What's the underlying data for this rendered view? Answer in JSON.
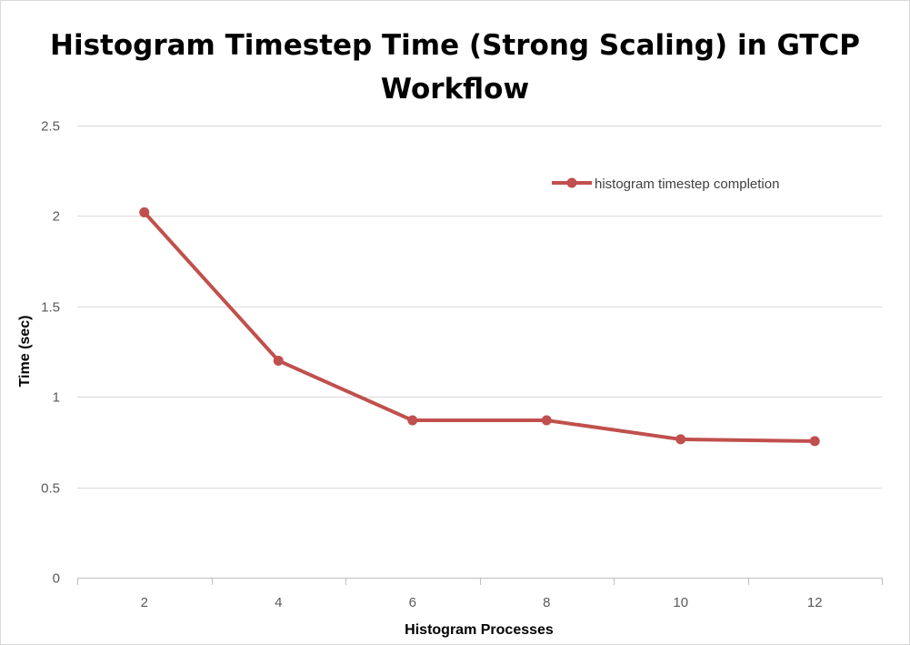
{
  "chart_data": {
    "type": "line",
    "title_lines": [
      "Histogram Timestep Time (Strong Scaling) in GTCP",
      "Workflow"
    ],
    "xlabel": "Histogram Processes",
    "ylabel": "Time (sec)",
    "categories": [
      "2",
      "4",
      "6",
      "8",
      "10",
      "12"
    ],
    "ylim": [
      0,
      2.5
    ],
    "yticks": [
      0,
      0.5,
      1,
      1.5,
      2,
      2.5
    ],
    "ytick_labels": [
      "0",
      "0.5",
      "1",
      "1.5",
      "2",
      "2.5"
    ],
    "grid": true,
    "legend_position": "top-right",
    "series": [
      {
        "name": "histogram timestep completion",
        "color": "#c0504d",
        "values": [
          2.02,
          1.2,
          0.87,
          0.87,
          0.765,
          0.755
        ]
      }
    ]
  }
}
